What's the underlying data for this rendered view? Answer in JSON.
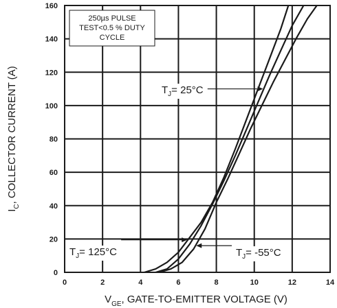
{
  "chart_data": {
    "type": "line",
    "title": "",
    "xlabel": {
      "main": "V",
      "sub": "GE",
      "rest": ", GATE-TO-EMITTER VOLTAGE (V)"
    },
    "ylabel": {
      "main": "I",
      "sub": "C",
      "rest": ", COLLECTOR CURRENT (A)"
    },
    "xlim": [
      0,
      14
    ],
    "ylim": [
      0,
      160
    ],
    "xticks": [
      0,
      2,
      4,
      6,
      8,
      10,
      12,
      14
    ],
    "yticks": [
      0,
      20,
      40,
      60,
      80,
      100,
      120,
      140,
      160
    ],
    "grid": true,
    "note": [
      "250µs PULSE",
      "TEST<0.5 % DUTY",
      "CYCLE"
    ],
    "series": [
      {
        "name": "T_J = 125°C",
        "x": [
          4.2,
          4.8,
          5.4,
          6.0,
          6.6,
          7.2,
          7.8,
          8.4,
          9.0,
          9.6,
          10.2,
          10.8,
          11.4,
          11.8
        ],
        "y": [
          0,
          2,
          6,
          12,
          21,
          30,
          42,
          57,
          74,
          92,
          110,
          128,
          146,
          160
        ]
      },
      {
        "name": "T_J = 25°C",
        "x": [
          4.8,
          5.4,
          6.0,
          6.6,
          7.2,
          7.8,
          8.4,
          9.0,
          9.6,
          10.2,
          10.8,
          11.4,
          12.0,
          12.6
        ],
        "y": [
          0,
          2,
          8,
          17,
          28,
          41,
          55,
          70,
          86,
          102,
          118,
          133,
          148,
          160
        ]
      },
      {
        "name": "T_J = -55°C",
        "x": [
          5.0,
          5.6,
          6.2,
          6.8,
          7.4,
          8.0,
          8.6,
          9.2,
          9.8,
          10.4,
          11.0,
          11.6,
          12.2,
          12.8,
          13.3
        ],
        "y": [
          0,
          2,
          6,
          14,
          26,
          42,
          56,
          71,
          86,
          100,
          114,
          127,
          140,
          152,
          160
        ]
      }
    ],
    "annotations": [
      {
        "label": {
          "pre": "T",
          "sub": "J",
          "post": "= 25°C"
        },
        "series": 1,
        "at_x": 10.5
      },
      {
        "label": {
          "pre": "T",
          "sub": "J",
          "post": "= 125°C"
        },
        "series": 0,
        "at_x": 6.5
      },
      {
        "label": {
          "pre": "T",
          "sub": "J",
          "post": "= -55°C"
        },
        "series": 2,
        "at_x": 6.9
      }
    ],
    "colors": {
      "line": "#1a1a1a",
      "grid": "#1a1a1a",
      "background": "#ffffff"
    }
  }
}
